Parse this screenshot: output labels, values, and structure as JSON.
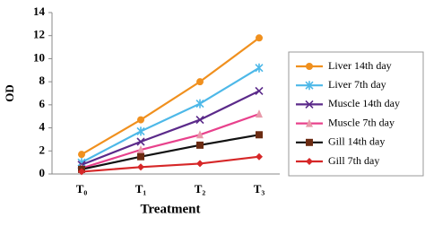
{
  "chart_data": {
    "type": "line",
    "y_label": "OD",
    "x_label": "Treatment",
    "categories": [
      "T₀",
      "T₁",
      "T₂",
      "T₃"
    ],
    "ylim": [
      0,
      14
    ],
    "yticks": [
      0,
      2,
      4,
      6,
      8,
      10,
      12,
      14
    ],
    "legend": "right",
    "series": [
      {
        "name": "Liver 14th day",
        "color": "#f0901e",
        "marker": "circle",
        "values": [
          1.7,
          4.7,
          8.0,
          11.8
        ]
      },
      {
        "name": "Liver 7th day",
        "color": "#4db8e8",
        "marker": "star",
        "values": [
          1.0,
          3.7,
          6.1,
          9.2
        ]
      },
      {
        "name": "Muscle 14th day",
        "color": "#5b2a8a",
        "marker": "x",
        "values": [
          0.8,
          2.8,
          4.7,
          7.2
        ]
      },
      {
        "name": "Muscle 7th day",
        "color": "#e8418c",
        "marker": "triangle",
        "values": [
          0.5,
          2.1,
          3.4,
          5.2
        ]
      },
      {
        "name": "Gill 14th day",
        "color": "#111111",
        "marker": "square",
        "values": [
          0.4,
          1.5,
          2.5,
          3.4
        ]
      },
      {
        "name": "Gill 7th day",
        "color": "#d62728",
        "marker": "diamond",
        "values": [
          0.2,
          0.6,
          0.9,
          1.5
        ]
      }
    ]
  }
}
